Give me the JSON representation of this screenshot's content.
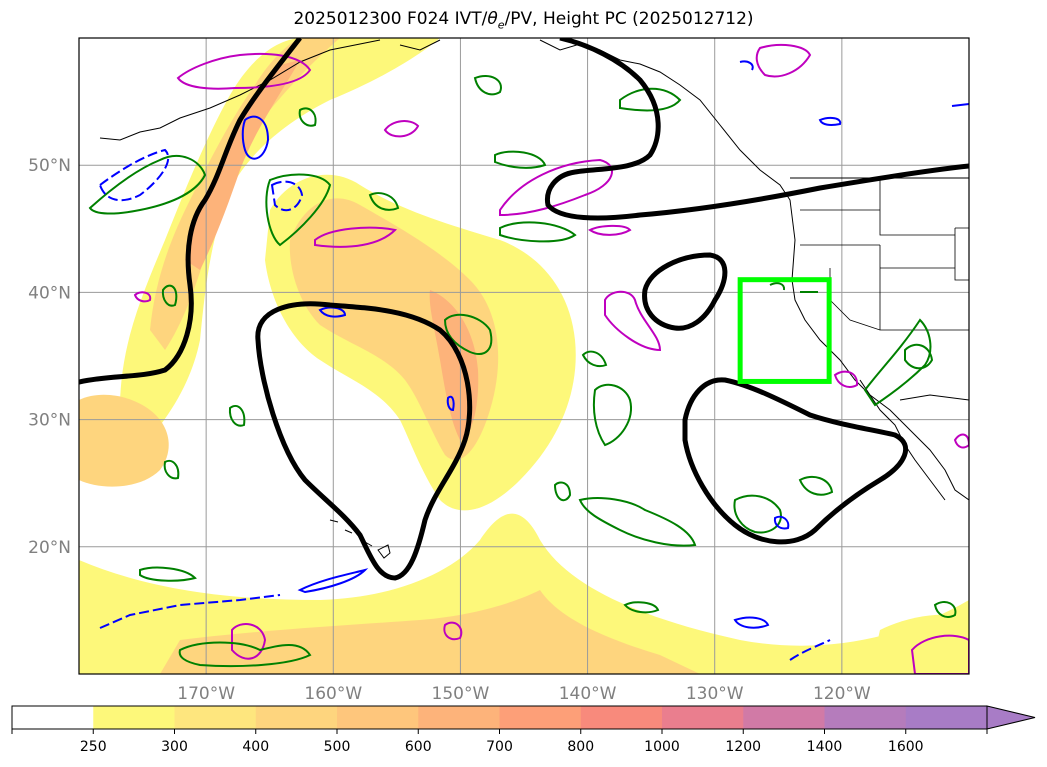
{
  "title": {
    "prefix": "2025012300 F024 IVT/",
    "theta_symbol": "θ",
    "theta_sub": "e",
    "suffix": "/PV, Height PC (2025012712)"
  },
  "map": {
    "extent": {
      "lon_min": -180,
      "lon_max": -110,
      "lat_min": 10,
      "lat_max": 60
    },
    "grid": true,
    "lat_ticks": [
      {
        "value": 50,
        "label": "50°N"
      },
      {
        "value": 40,
        "label": "40°N"
      },
      {
        "value": 30,
        "label": "30°N"
      },
      {
        "value": 20,
        "label": "20°N"
      }
    ],
    "lon_ticks": [
      {
        "value": -170,
        "label": "170°W"
      },
      {
        "value": -160,
        "label": "160°W"
      },
      {
        "value": -150,
        "label": "150°W"
      },
      {
        "value": -140,
        "label": "140°W"
      },
      {
        "value": -130,
        "label": "130°W"
      },
      {
        "value": -120,
        "label": "120°W"
      }
    ],
    "highlight_box": {
      "lon_min": -128,
      "lon_max": -121,
      "lat_min": 33,
      "lat_max": 41,
      "color": "#00ff00"
    },
    "colors": {
      "height_contour": "#000000",
      "theta_e": "#008000",
      "pv_positive": "#0000ff",
      "pv_contour": "#bf00bf",
      "coastline": "#000000"
    }
  },
  "colorbar": {
    "levels": [
      "250",
      "300",
      "400",
      "500",
      "600",
      "700",
      "800",
      "1000",
      "1200",
      "1400",
      "1600"
    ],
    "colors": [
      "#ffffff",
      "#fdf87a",
      "#fee67e",
      "#fed57e",
      "#fec67c",
      "#fdb37a",
      "#fd9f78",
      "#f88a7c",
      "#ea7e8e",
      "#d17aa6",
      "#b57cbc",
      "#a87cc6"
    ],
    "extend": "max"
  }
}
